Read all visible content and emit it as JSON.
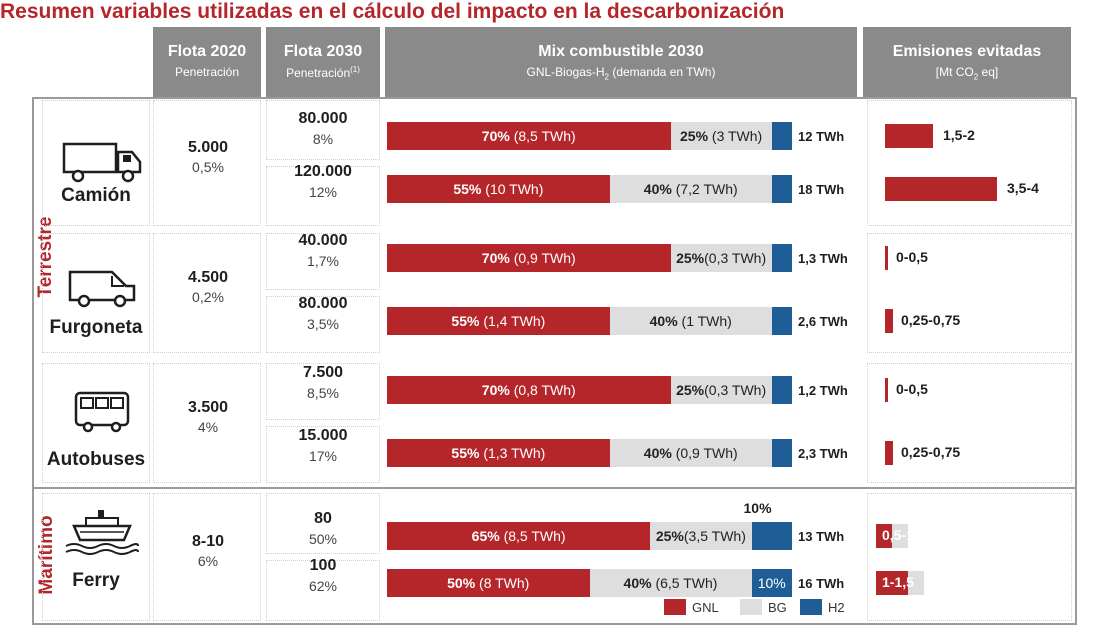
{
  "title": "Resumen variables utilizadas en el cálculo del impacto en la descarbonización",
  "headers": {
    "flota2020": {
      "title": "Flota 2020",
      "sub": "Penetración"
    },
    "flota2030": {
      "title": "Flota 2030",
      "sub": "Penetración",
      "note": "(1)"
    },
    "mix": {
      "title": "Mix combustible 2030",
      "sub_pre": "GNL-Biogas-H",
      "sub_sub": "2",
      "sub_post": " (demanda en TWh)"
    },
    "emis": {
      "title": "Emisiones evitadas",
      "sub_pre": "[Mt CO",
      "sub_sub": "2",
      "sub_post": " eq]"
    }
  },
  "groups": {
    "terrestre": "Terrestre",
    "maritimo": "Marítimo"
  },
  "legend": [
    {
      "label": "GNL",
      "color": "#b5262b"
    },
    {
      "label": "BG",
      "color": "#dedede"
    },
    {
      "label": "H2",
      "color": "#1f5d96"
    }
  ],
  "chart_data": {
    "type": "bar",
    "stacked": true,
    "series_names": [
      "GNL",
      "BG",
      "H2"
    ],
    "categories": [
      {
        "name": "Camión",
        "icon": "truck-icon",
        "flota2020": "5.000",
        "pen2020": "0,5%",
        "scenarios": [
          {
            "flota2030": "80.000",
            "pen2030": "8%",
            "gnl": 70,
            "bg": 25,
            "h2": 5,
            "gnl_label": "70%",
            "gnl_twh": " (8,5 TWh)",
            "bg_label": "25%",
            "bg_twh": " (3 TWh)",
            "h2_label": "",
            "total": "12 TWh",
            "emis_label": "1,5-2",
            "emis_low": 1.5,
            "emis_high": 2
          },
          {
            "flota2030": "120.000",
            "pen2030": "12%",
            "gnl": 55,
            "bg": 40,
            "h2": 5,
            "gnl_label": "55%",
            "gnl_twh": " (10 TWh)",
            "bg_label": "40%",
            "bg_twh": " (7,2 TWh)",
            "h2_label": "",
            "total": "18 TWh",
            "emis_label": "3,5-4",
            "emis_low": 3.5,
            "emis_high": 4
          }
        ]
      },
      {
        "name": "Furgoneta",
        "icon": "van-icon",
        "flota2020": "4.500",
        "pen2020": "0,2%",
        "scenarios": [
          {
            "flota2030": "40.000",
            "pen2030": "1,7%",
            "gnl": 70,
            "bg": 25,
            "h2": 5,
            "gnl_label": "70%",
            "gnl_twh": " (0,9 TWh)",
            "bg_label": "25%",
            "bg_twh": "(0,3 TWh)",
            "h2_label": "",
            "total": "1,3 TWh",
            "emis_label": "0-0,5",
            "emis_low": 0,
            "emis_high": 0.5
          },
          {
            "flota2030": "80.000",
            "pen2030": "3,5%",
            "gnl": 55,
            "bg": 40,
            "h2": 5,
            "gnl_label": "55%",
            "gnl_twh": " (1,4 TWh)",
            "bg_label": "40%",
            "bg_twh": " (1 TWh)",
            "h2_label": "",
            "total": "2,6 TWh",
            "emis_label": "0,25-0,75",
            "emis_low": 0.25,
            "emis_high": 0.75
          }
        ]
      },
      {
        "name": "Autobuses",
        "icon": "bus-icon",
        "flota2020": "3.500",
        "pen2020": "4%",
        "scenarios": [
          {
            "flota2030": "7.500",
            "pen2030": "8,5%",
            "gnl": 70,
            "bg": 25,
            "h2": 5,
            "gnl_label": "70%",
            "gnl_twh": " (0,8 TWh)",
            "bg_label": "25%",
            "bg_twh": "(0,3 TWh)",
            "h2_label": "",
            "total": "1,2 TWh",
            "emis_label": "0-0,5",
            "emis_low": 0,
            "emis_high": 0.5
          },
          {
            "flota2030": "15.000",
            "pen2030": "17%",
            "gnl": 55,
            "bg": 40,
            "h2": 5,
            "gnl_label": "55%",
            "gnl_twh": " (1,3 TWh)",
            "bg_label": "40%",
            "bg_twh": " (0,9 TWh)",
            "h2_label": "",
            "total": "2,3 TWh",
            "emis_label": "0,25-0,75",
            "emis_low": 0.25,
            "emis_high": 0.75
          }
        ]
      },
      {
        "name": "Ferry",
        "icon": "ferry-icon",
        "flota2020": "8-10",
        "pen2020": "6%",
        "scenarios": [
          {
            "flota2030": "80",
            "pen2030": "50%",
            "gnl": 65,
            "bg": 25,
            "h2": 10,
            "gnl_label": "65%",
            "gnl_twh": " (8,5 TWh)",
            "bg_label": "25%",
            "bg_twh": "(3,5 TWh)",
            "h2_label": "10%",
            "h2_label_above": true,
            "total": "13 TWh",
            "emis_label": "0,5-1",
            "emis_low": 0.5,
            "emis_high": 1
          },
          {
            "flota2030": "100",
            "pen2030": "62%",
            "gnl": 50,
            "bg": 40,
            "h2": 10,
            "gnl_label": "50%",
            "gnl_twh": " (8 TWh)",
            "bg_label": "40%",
            "bg_twh": " (6,5 TWh)",
            "h2_label": "10%",
            "h2_label_above": false,
            "total": "16 TWh",
            "emis_label": "1-1,5",
            "emis_low": 1,
            "emis_high": 1.5
          }
        ]
      }
    ],
    "emis_scale_max": 4
  }
}
